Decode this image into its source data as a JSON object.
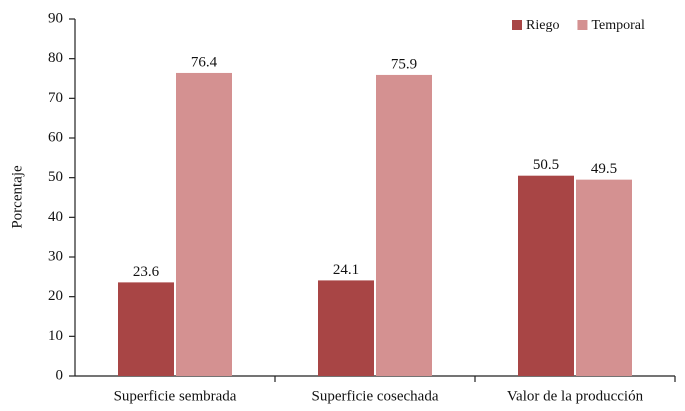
{
  "chart_data": {
    "type": "bar",
    "categories": [
      "Superficie sembrada",
      "Superficie cosechada",
      "Valor de la producción"
    ],
    "series": [
      {
        "name": "Riego",
        "color": "#a84545",
        "values": [
          23.6,
          24.1,
          50.5
        ]
      },
      {
        "name": "Temporal",
        "color": "#d49191",
        "values": [
          76.4,
          75.9,
          49.5
        ]
      }
    ],
    "y_label": "Porcentaje",
    "ylim": [
      0,
      90
    ],
    "yticks": [
      0,
      10,
      20,
      30,
      40,
      50,
      60,
      70,
      80,
      90
    ],
    "grid": false,
    "legend": "upper right",
    "data_labels": true
  }
}
